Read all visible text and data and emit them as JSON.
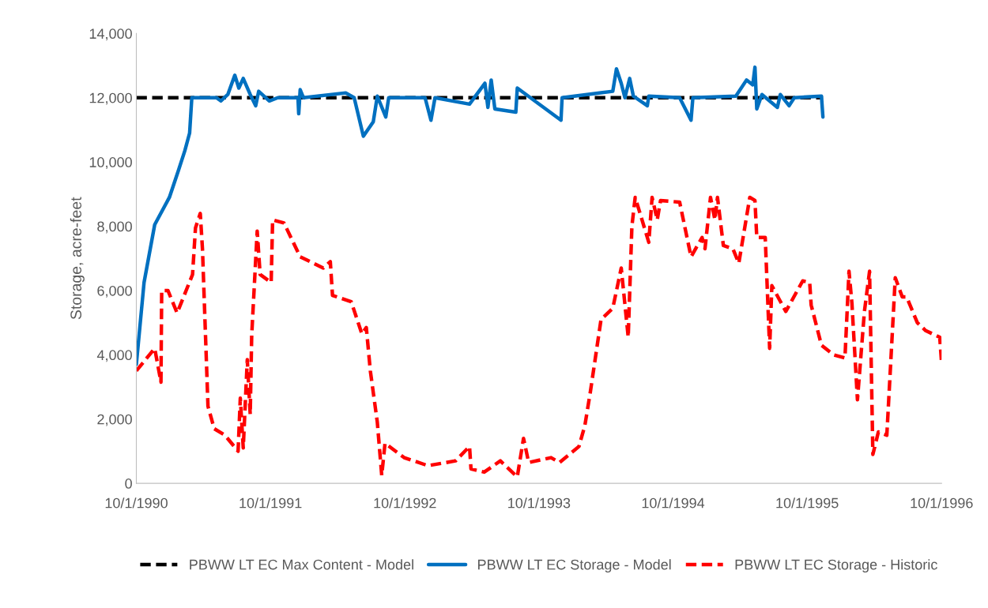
{
  "chart_data": {
    "type": "line",
    "ylabel": "Storage, acre-feet",
    "xlim": [
      "1990-10-01",
      "1996-10-01"
    ],
    "xticks": [
      {
        "value": "1990-10-01",
        "label": "10/1/1990"
      },
      {
        "value": "1991-10-01",
        "label": "10/1/1991"
      },
      {
        "value": "1992-10-01",
        "label": "10/1/1992"
      },
      {
        "value": "1993-10-01",
        "label": "10/1/1993"
      },
      {
        "value": "1994-10-01",
        "label": "10/1/1994"
      },
      {
        "value": "1995-10-01",
        "label": "10/1/1995"
      },
      {
        "value": "1996-10-01",
        "label": "10/1/1996"
      }
    ],
    "ylim": [
      0,
      14000
    ],
    "yticks": [
      0,
      {
        "value": 2000,
        "label": "2,000"
      },
      {
        "value": 4000,
        "label": "4,000"
      },
      {
        "value": 6000,
        "label": "6,000"
      },
      {
        "value": 8000,
        "label": "8,000"
      },
      {
        "value": 10000,
        "label": "10,000"
      },
      {
        "value": 12000,
        "label": "12,000"
      },
      {
        "value": 14000,
        "label": "14,000"
      }
    ],
    "grid": false,
    "legend": "bottom",
    "marker": "none",
    "series": [
      {
        "name": "PBWW LT EC Max Content - Model",
        "color": "#000000",
        "line_style": "dashed",
        "x": [
          "1990-10-01",
          "1995-11-13"
        ],
        "values": [
          12000,
          12000
        ]
      },
      {
        "name": "PBWW LT EC Storage - Model",
        "color": "#0070c0",
        "line_style": "solid",
        "x": [
          "1990-10-01",
          "1990-10-22",
          "1990-11-20",
          "1990-12-30",
          "1991-01-24",
          "1991-02-10",
          "1991-02-23",
          "1991-03-01",
          "1991-05-07",
          "1991-05-19",
          "1991-06-07",
          "1991-06-26",
          "1991-07-07",
          "1991-07-19",
          "1991-08-07",
          "1991-08-22",
          "1991-08-30",
          "1991-09-28",
          "1991-10-21",
          "1991-12-15",
          "1991-12-17",
          "1991-12-21",
          "1991-12-30",
          "1992-04-23",
          "1992-05-16",
          "1992-06-10",
          "1992-07-07",
          "1992-07-18",
          "1992-08-10",
          "1992-08-18",
          "1992-11-25",
          "1992-12-11",
          "1992-12-22",
          "1993-03-26",
          "1993-05-07",
          "1993-05-15",
          "1993-05-24",
          "1993-06-03",
          "1993-07-30",
          "1993-08-03",
          "1993-11-30",
          "1993-12-03",
          "1994-04-20",
          "1994-04-30",
          "1994-05-13",
          "1994-05-23",
          "1994-06-05",
          "1994-06-15",
          "1994-07-23",
          "1994-07-27",
          "1994-10-19",
          "1994-11-19",
          "1994-11-24",
          "1995-03-21",
          "1995-04-19",
          "1995-05-06",
          "1995-05-12",
          "1995-05-17",
          "1995-05-31",
          "1995-07-12",
          "1995-07-20",
          "1995-08-13",
          "1995-08-27",
          "1995-11-09",
          "1995-11-13"
        ],
        "values": [
          3700,
          6250,
          8050,
          8900,
          9750,
          10350,
          10900,
          12000,
          12000,
          11900,
          12100,
          12700,
          12300,
          12600,
          12100,
          11750,
          12200,
          11900,
          12000,
          12000,
          11500,
          12250,
          12000,
          12150,
          12000,
          10800,
          11250,
          12050,
          11400,
          12000,
          12000,
          11300,
          12000,
          11800,
          12450,
          11700,
          12550,
          11650,
          11550,
          12300,
          11300,
          12000,
          12200,
          12900,
          12450,
          12000,
          12600,
          12050,
          11750,
          12050,
          12000,
          11300,
          12000,
          12050,
          12550,
          12400,
          12950,
          11650,
          12100,
          11700,
          12100,
          11750,
          12000,
          12050,
          11400
        ]
      },
      {
        "name": "PBWW LT EC Storage - Historic",
        "color": "#ff0000",
        "line_style": "dashed",
        "x": [
          "1990-10-01",
          "1990-11-20",
          "1990-12-07",
          "1990-12-09",
          "1990-12-26",
          "1991-01-20",
          "1991-03-03",
          "1991-03-11",
          "1991-03-24",
          "1991-03-30",
          "1991-04-14",
          "1991-05-01",
          "1991-05-30",
          "1991-07-05",
          "1991-07-11",
          "1991-07-19",
          "1991-07-30",
          "1991-08-07",
          "1991-08-11",
          "1991-08-26",
          "1991-09-03",
          "1991-10-03",
          "1991-10-07",
          "1991-11-07",
          "1991-12-21",
          "1992-02-22",
          "1992-03-12",
          "1992-03-18",
          "1992-05-08",
          "1992-06-06",
          "1992-06-18",
          "1992-06-29",
          "1992-07-18",
          "1992-07-30",
          "1992-08-08",
          "1992-09-29",
          "1992-12-03",
          "1993-02-16",
          "1993-03-26",
          "1993-03-30",
          "1993-05-05",
          "1993-06-18",
          "1993-08-03",
          "1993-08-20",
          "1993-09-03",
          "1993-11-03",
          "1993-11-26",
          "1994-01-18",
          "1994-02-03",
          "1994-02-18",
          "1994-03-19",
          "1994-04-20",
          "1994-05-13",
          "1994-06-01",
          "1994-06-11",
          "1994-06-20",
          "1994-07-27",
          "1994-08-05",
          "1994-08-19",
          "1994-08-28",
          "1994-10-19",
          "1994-11-19",
          "1994-12-19",
          "1994-12-27",
          "1995-01-11",
          "1995-01-23",
          "1995-01-30",
          "1995-02-15",
          "1995-03-13",
          "1995-03-29",
          "1995-04-28",
          "1995-05-12",
          "1995-05-17",
          "1995-06-09",
          "1995-06-21",
          "1995-06-27",
          "1995-08-04",
          "1995-09-19",
          "1995-10-08",
          "1995-10-12",
          "1995-11-09",
          "1995-12-12",
          "1996-01-12",
          "1996-01-23",
          "1996-01-31",
          "1996-02-15",
          "1996-03-05",
          "1996-03-19",
          "1996-03-28",
          "1996-04-12",
          "1996-05-05",
          "1996-05-28",
          "1996-06-16",
          "1996-06-28",
          "1996-07-27",
          "1996-08-19",
          "1996-09-26",
          "1996-10-01"
        ],
        "values": [
          3500,
          4200,
          3150,
          6000,
          6000,
          5300,
          6500,
          7950,
          8400,
          7300,
          2400,
          1700,
          1500,
          1000,
          2650,
          1100,
          3850,
          2150,
          4600,
          7850,
          6500,
          6250,
          8200,
          8100,
          7050,
          6700,
          6900,
          5850,
          5650,
          4650,
          4850,
          3500,
          1900,
          250,
          1250,
          800,
          550,
          700,
          1150,
          450,
          350,
          700,
          200,
          1400,
          650,
          800,
          650,
          1150,
          1800,
          2850,
          5100,
          5450,
          6700,
          4550,
          8000,
          8900,
          7500,
          8900,
          8200,
          8800,
          8750,
          7050,
          7650,
          7300,
          8900,
          8200,
          8900,
          7400,
          7300,
          6850,
          8900,
          8800,
          7650,
          7650,
          4200,
          6150,
          5350,
          6300,
          6250,
          5550,
          4300,
          4000,
          3900,
          6600,
          5600,
          2600,
          5350,
          6600,
          900,
          1600,
          1500,
          6400,
          5800,
          5800,
          5000,
          4750,
          4550,
          3750
        ]
      }
    ]
  }
}
